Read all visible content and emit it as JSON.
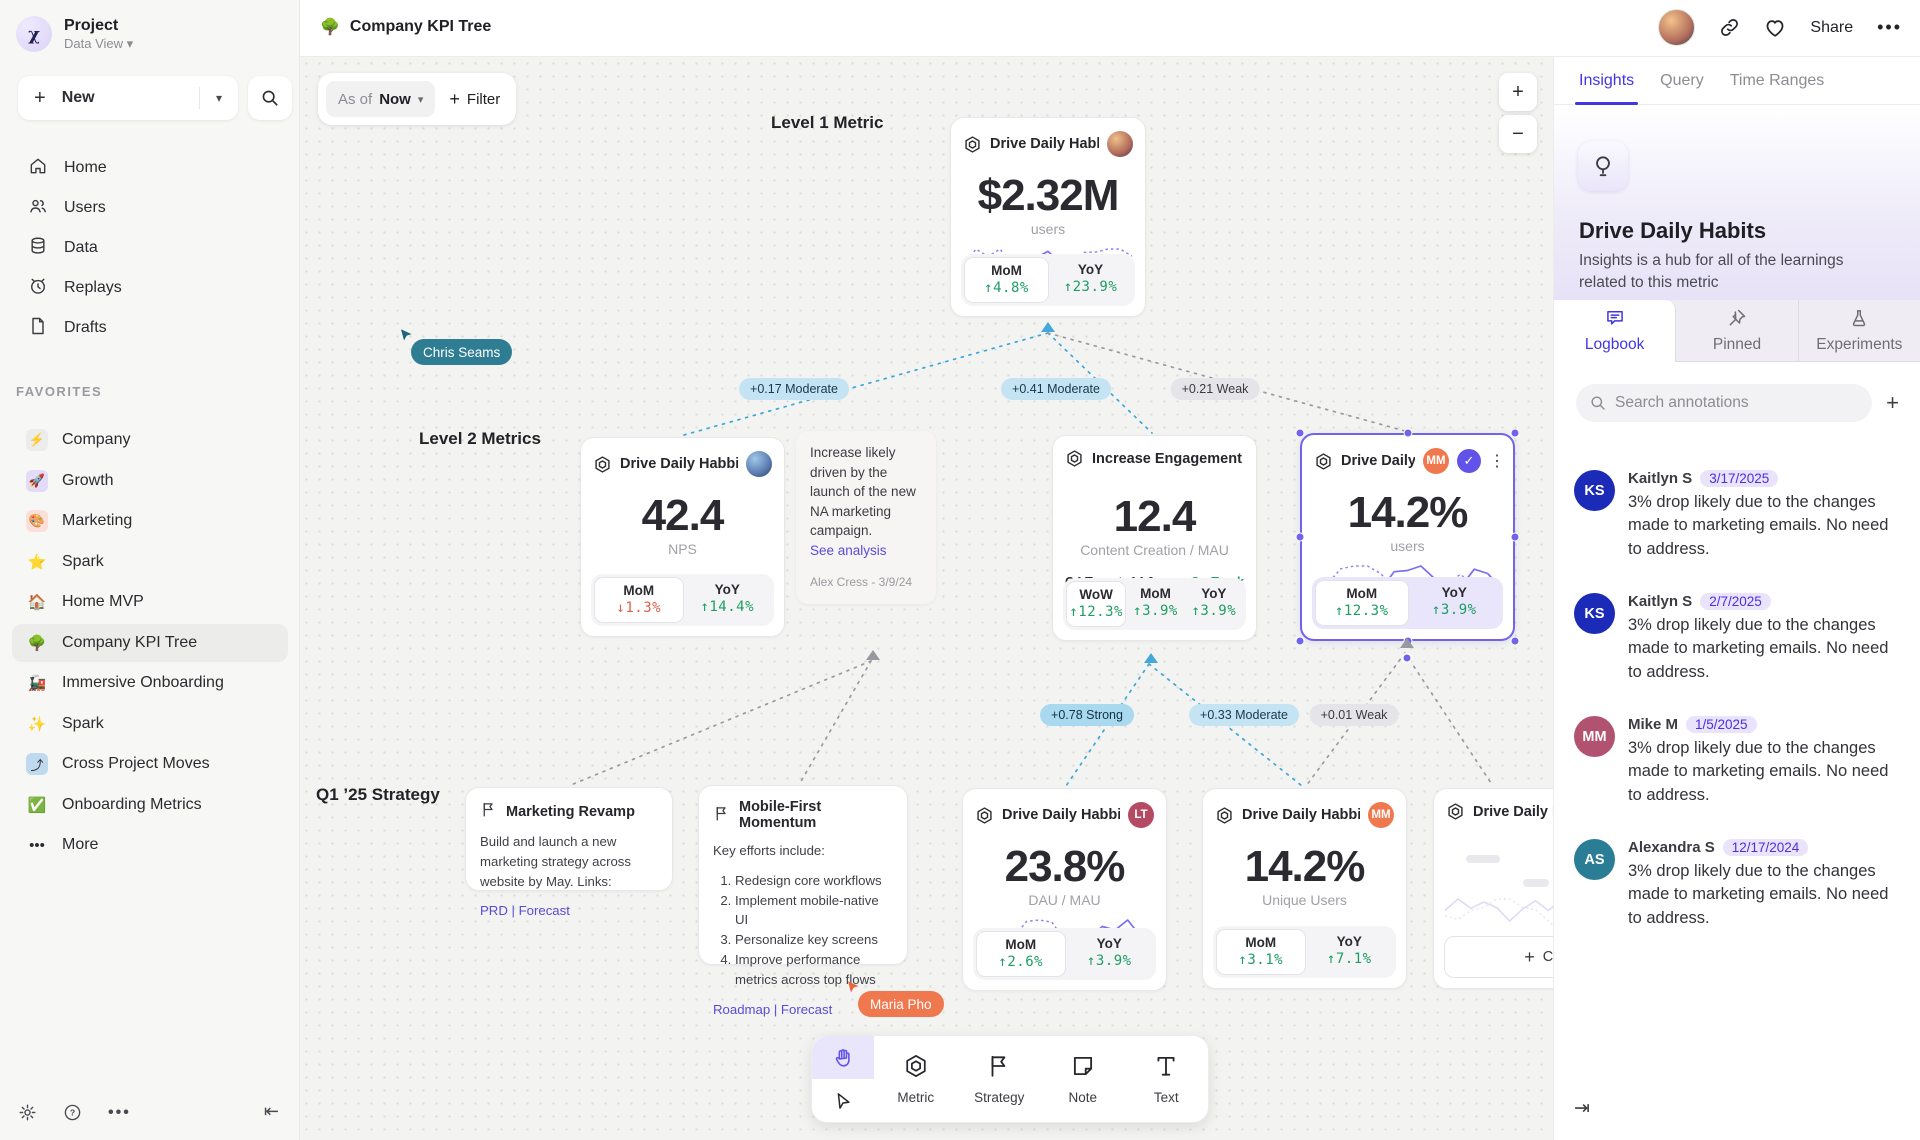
{
  "colors": {
    "accent": "#5b4be0",
    "green": "#1e9e63",
    "red": "#e0604e",
    "edge_blue": "#3ba7db",
    "cursor_teal": "#2e7d92",
    "cursor_orange": "#f0784e"
  },
  "sidebar": {
    "project_name": "Project",
    "workspace": "Data View",
    "new_label": "New",
    "nav": [
      {
        "icon": "home-icon",
        "label": "Home"
      },
      {
        "icon": "users-icon",
        "label": "Users"
      },
      {
        "icon": "data-icon",
        "label": "Data"
      },
      {
        "icon": "replays-icon",
        "label": "Replays"
      },
      {
        "icon": "drafts-icon",
        "label": "Drafts"
      }
    ],
    "favorites_header": "FAVORITES",
    "favorites": [
      {
        "emoji": "⚡",
        "boxed": "#ececec",
        "label": "Company",
        "active": false
      },
      {
        "emoji": "🚀",
        "boxed": "#e2dcf9",
        "label": "Growth",
        "active": false
      },
      {
        "emoji": "🎨",
        "boxed": "#fcdfd9",
        "label": "Marketing",
        "active": false
      },
      {
        "emoji": "⭐",
        "boxed": "",
        "label": "Spark",
        "active": false
      },
      {
        "emoji": "🏠",
        "boxed": "",
        "label": "Home MVP",
        "active": false
      },
      {
        "emoji": "🌳",
        "boxed": "",
        "label": "Company KPI Tree",
        "active": true
      },
      {
        "emoji": "🚂",
        "boxed": "",
        "label": "Immersive Onboarding",
        "active": false
      },
      {
        "emoji": "✨",
        "boxed": "",
        "label": "Spark",
        "active": false
      },
      {
        "emoji": "⤴",
        "boxed": "#bfd9ee",
        "label": "Cross Project Moves",
        "active": false
      },
      {
        "emoji": "✅",
        "boxed": "",
        "label": "Onboarding Metrics",
        "active": false
      },
      {
        "emoji": "•••",
        "boxed": "",
        "label": "More",
        "active": false
      }
    ]
  },
  "topbar": {
    "emoji": "🌳",
    "title": "Company KPI Tree",
    "share_label": "Share"
  },
  "canvas": {
    "as_of_label": "As of",
    "as_of_value": "Now",
    "filter_label": "Filter",
    "zoom_in": "+",
    "zoom_out": "−",
    "level_labels": [
      "Level 1 Metric",
      "Level 2 Metrics",
      "Q1 ’25 Strategy"
    ],
    "edge_labels": [
      {
        "text": "+0.17 Moderate",
        "tone": "blue"
      },
      {
        "text": "+0.41 Moderate",
        "tone": "blue"
      },
      {
        "text": "+0.21 Weak",
        "tone": "gray"
      },
      {
        "text": "+0.78 Strong",
        "tone": "strong"
      },
      {
        "text": "+0.33 Moderate",
        "tone": "blue"
      },
      {
        "text": "+0.01 Weak",
        "tone": "gray"
      }
    ],
    "cursors": [
      {
        "name": "Chris Seams",
        "color": "#2e7d92",
        "arrow": "#1d6478"
      },
      {
        "name": "Maria Pho",
        "color": "#f0784e",
        "arrow": "#e8663d"
      }
    ],
    "cards": [
      {
        "id": "l1",
        "kind": "metric",
        "title": "Drive Daily Habbits",
        "avatar": "photo-warm",
        "value": "$2.32M",
        "unit": "users",
        "stats": [
          {
            "label": "MoM",
            "value": "4.8%",
            "dir": "up"
          },
          {
            "label": "YoY",
            "value": "23.9%",
            "dir": "up"
          }
        ]
      },
      {
        "id": "nps",
        "kind": "metric",
        "title": "Drive Daily Habbits",
        "avatar": "photo-cool",
        "value": "42.4",
        "unit": "NPS",
        "stats": [
          {
            "label": "MoM",
            "value": "1.3%",
            "dir": "down"
          },
          {
            "label": "YoY",
            "value": "14.4%",
            "dir": "up"
          }
        ]
      },
      {
        "id": "note1",
        "kind": "note",
        "text": "Increase likely driven by the launch of the new NA marketing campaign.",
        "link": "See analysis",
        "author": "Alex Cress - 3/9/24"
      },
      {
        "id": "ie",
        "kind": "metric",
        "title": "Increase Engagement",
        "value": "12.4",
        "unit": "Content Creation / MAU",
        "target": {
          "label": "Q4 Target: 14.0",
          "status": "On Track",
          "check": "✓",
          "pct": 85
        },
        "stats": [
          {
            "label": "WoW",
            "value": "12.3%",
            "dir": "up"
          },
          {
            "label": "MoM",
            "value": "3.9%",
            "dir": "up"
          },
          {
            "label": "YoY",
            "value": "3.9%",
            "dir": "up"
          }
        ]
      },
      {
        "id": "sel",
        "kind": "metric",
        "selected": true,
        "title": "Drive Daily Habb..",
        "badge": {
          "text": "MM",
          "color": "#f0784e"
        },
        "verified": true,
        "kebab": true,
        "value": "14.2%",
        "unit": "users",
        "stats": [
          {
            "label": "MoM",
            "value": "12.3%",
            "dir": "up"
          },
          {
            "label": "YoY",
            "value": "3.9%",
            "dir": "up"
          }
        ]
      },
      {
        "id": "mr",
        "kind": "strategy",
        "title": "Marketing Revamp",
        "body": "Build and launch a new marketing strategy across website by May. Links:",
        "links": "PRD | Forecast"
      },
      {
        "id": "mf",
        "kind": "strategy",
        "title": "Mobile-First Momentum",
        "body": "Key efforts include:",
        "list": [
          "Redesign core workflows",
          "Implement mobile-native UI",
          "Personalize key screens",
          "Improve performance metrics across top flows"
        ],
        "links": "Roadmap | Forecast"
      },
      {
        "id": "dau",
        "kind": "metric",
        "title": "Drive Daily Habbits",
        "badge": {
          "text": "LT",
          "color": "#b44a63"
        },
        "value": "23.8%",
        "unit": "DAU / MAU",
        "stats": [
          {
            "label": "MoM",
            "value": "2.6%",
            "dir": "up"
          },
          {
            "label": "YoY",
            "value": "3.9%",
            "dir": "up"
          }
        ]
      },
      {
        "id": "uu",
        "kind": "metric",
        "title": "Drive Daily Habbits",
        "badge": {
          "text": "MM",
          "color": "#f0784e"
        },
        "value": "14.2%",
        "unit": "Unique Users",
        "stats": [
          {
            "label": "MoM",
            "value": "3.1%",
            "dir": "up"
          },
          {
            "label": "YoY",
            "value": "7.1%",
            "dir": "up"
          }
        ]
      },
      {
        "id": "ghost",
        "kind": "ghost",
        "title": "Drive Daily Hab",
        "connect_label": "Connect"
      }
    ]
  },
  "toolbar": {
    "tools": [
      {
        "icon": "metric-hexagon-icon",
        "label": "Metric"
      },
      {
        "icon": "strategy-flag-icon",
        "label": "Strategy"
      },
      {
        "icon": "note-icon",
        "label": "Note"
      },
      {
        "icon": "text-icon",
        "label": "Text"
      }
    ]
  },
  "panel": {
    "tabs": [
      {
        "label": "Insights",
        "active": true
      },
      {
        "label": "Query",
        "active": false
      },
      {
        "label": "Time Ranges",
        "active": false
      }
    ],
    "hero_title": "Drive Daily Habits",
    "hero_desc": "Insights is a hub for all of the learnings related to this metric",
    "subtabs": [
      {
        "icon": "logbook-icon",
        "label": "Logbook",
        "active": true
      },
      {
        "icon": "pin-icon",
        "label": "Pinned",
        "active": false
      },
      {
        "icon": "flask-icon",
        "label": "Experiments",
        "active": false
      }
    ],
    "search_placeholder": "Search annotations",
    "annotations": [
      {
        "initials": "KS",
        "color": "#1b2bb8",
        "name": "Kaitlyn S",
        "date": "3/17/2025",
        "body": "3% drop likely due to the changes made to marketing emails. No need to address."
      },
      {
        "initials": "KS",
        "color": "#1b2bb8",
        "name": "Kaitlyn S",
        "date": "2/7/2025",
        "body": "3% drop likely due to the changes made to marketing emails. No need to address."
      },
      {
        "initials": "MM",
        "color": "#b25271",
        "name": "Mike M",
        "date": "1/5/2025",
        "body": "3% drop likely due to the changes made to marketing emails. No need to address."
      },
      {
        "initials": "AS",
        "color": "#2b7d96",
        "name": "Alexandra S",
        "date": "12/17/2024",
        "body": "3% drop likely due to the changes made to marketing emails. No need to address."
      }
    ]
  }
}
